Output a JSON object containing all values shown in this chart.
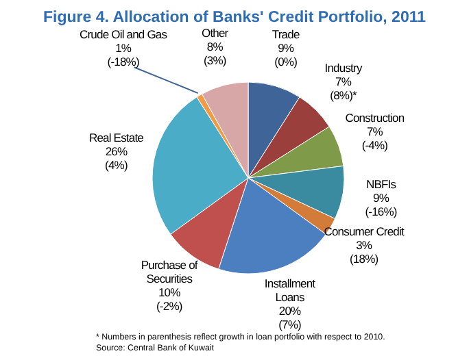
{
  "chart_data": {
    "type": "pie",
    "title": "Figure 4. Allocation of Banks' Credit Portfolio, 2011",
    "categories": [
      "Trade",
      "Industry",
      "Construction",
      "NBFIs",
      "Consumer Credit",
      "Installment\nLoans",
      "Purchase of\nSecurities",
      "Real Estate",
      "Crude Oil and Gas",
      "Other"
    ],
    "values": [
      9,
      7,
      7,
      9,
      3,
      20,
      10,
      26,
      1,
      8
    ],
    "value_labels": [
      "9%\n(0%)",
      "7%\n(8%)*",
      "7%\n(-4%)",
      "9%\n(-16%)",
      "3%\n(18%)",
      "20%\n(7%)",
      "10%\n(-2%)",
      "26%\n(4%)",
      "1%\n(-18%)",
      "8%\n(3%)"
    ],
    "colors": [
      "#3f6598",
      "#9b3f3d",
      "#7f9a48",
      "#3a8aa0",
      "#d37c3a",
      "#4b7fbf",
      "#bf504d",
      "#4aacc6",
      "#f39a45",
      "#d6a7a6"
    ],
    "annotations": [
      "* Numbers in parenthesis reflect growth in loan portfolio with respect to 2010.",
      "Source: Central Bank of Kuwait"
    ]
  }
}
